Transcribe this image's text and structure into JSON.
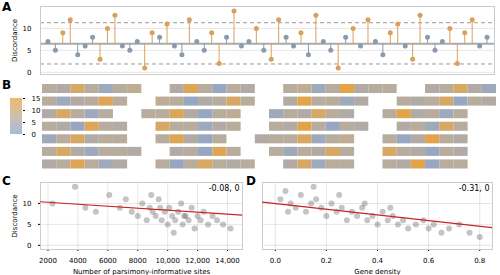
{
  "chart_data": [
    {
      "type": "lollipop",
      "panel": "A",
      "y_label": "Discordance",
      "x": [
        1,
        2,
        3,
        4,
        5,
        6,
        7,
        8,
        9,
        10,
        11,
        12,
        13,
        14,
        15,
        16,
        17,
        18,
        19,
        20,
        21,
        22,
        23,
        24,
        25,
        26,
        27,
        28,
        29,
        30,
        31,
        32,
        33,
        34,
        35,
        36,
        37,
        38,
        39,
        40,
        41,
        42,
        43,
        44,
        45,
        46,
        47,
        48,
        49,
        50,
        51,
        52,
        53,
        54,
        55,
        56,
        57,
        58,
        59,
        60
      ],
      "values": [
        7,
        5,
        9,
        12,
        4,
        6,
        8,
        3,
        10,
        13,
        6,
        5,
        7,
        1,
        9,
        8,
        11,
        6,
        4,
        12,
        7,
        5,
        9,
        2,
        8,
        14,
        6,
        7,
        10,
        5,
        3,
        12,
        8,
        6,
        9,
        4,
        13,
        7,
        5,
        1,
        8,
        10,
        6,
        12,
        7,
        4,
        9,
        11,
        6,
        3,
        13,
        8,
        5,
        7,
        10,
        2,
        9,
        12,
        6,
        8
      ],
      "colors": [
        "#8c9bab",
        "#8c9bab",
        "#d9a05b",
        "#d9a05b",
        "#8c9bab",
        "#8c9bab",
        "#8c9bab",
        "#d9a05b",
        "#d9a05b",
        "#d9a05b",
        "#8c9bab",
        "#8c9bab",
        "#8c9bab",
        "#d9a05b",
        "#d9a05b",
        "#8c9bab",
        "#d9a05b",
        "#8c9bab",
        "#8c9bab",
        "#d9a05b",
        "#8c9bab",
        "#8c9bab",
        "#d9a05b",
        "#d9a05b",
        "#8c9bab",
        "#d9a05b",
        "#8c9bab",
        "#8c9bab",
        "#d9a05b",
        "#8c9bab",
        "#d9a05b",
        "#d9a05b",
        "#8c9bab",
        "#8c9bab",
        "#d9a05b",
        "#8c9bab",
        "#d9a05b",
        "#8c9bab",
        "#8c9bab",
        "#d9a05b",
        "#8c9bab",
        "#d9a05b",
        "#8c9bab",
        "#d9a05b",
        "#8c9bab",
        "#8c9bab",
        "#d9a05b",
        "#d9a05b",
        "#8c9bab",
        "#d9a05b",
        "#d9a05b",
        "#8c9bab",
        "#8c9bab",
        "#8c9bab",
        "#d9a05b",
        "#d9a05b",
        "#d9a05b",
        "#d9a05b",
        "#8c9bab",
        "#8c9bab"
      ],
      "baseline": 6.5,
      "reference_lines": [
        1.9,
        11.3
      ],
      "xlim": [
        0,
        61
      ],
      "ylim": [
        -0.5,
        15
      ],
      "yticks": [
        0,
        5,
        10
      ],
      "grid": true,
      "tick_labels": "y"
    },
    {
      "type": "heatmap",
      "panel": "B",
      "rows": [
        [
          [
            7,
            6,
            12,
            7,
            3,
            7,
            8
          ],
          [
            6,
            13,
            7,
            2,
            7,
            6
          ],
          [
            7,
            8,
            3,
            7,
            14,
            6,
            7,
            7
          ],
          [
            6,
            7,
            12,
            6,
            3
          ]
        ],
        [
          [
            7,
            3,
            6,
            7,
            13,
            7
          ],
          [
            8,
            7,
            2,
            6,
            7,
            12,
            7
          ],
          [
            6,
            14,
            7,
            7,
            3,
            6
          ],
          [
            7,
            6,
            7,
            12,
            2,
            7,
            6
          ]
        ],
        [
          [
            6,
            12,
            7,
            3,
            7
          ],
          [
            7,
            7,
            13,
            6,
            2,
            7,
            8
          ],
          [
            3,
            7,
            6,
            12,
            7,
            6
          ],
          [
            7,
            14,
            6,
            7,
            3,
            7
          ]
        ],
        [
          [
            7,
            6,
            2,
            13,
            7,
            6
          ],
          [
            12,
            7,
            7,
            3,
            6,
            7
          ],
          [
            7,
            6,
            14,
            7,
            2,
            7,
            6
          ],
          [
            6,
            7,
            3,
            12,
            7
          ]
        ],
        [
          [
            3,
            7,
            12,
            6,
            7,
            7
          ],
          [
            7,
            13,
            6,
            2,
            7
          ],
          [
            6,
            7,
            7,
            12,
            3,
            7,
            8
          ],
          [
            7,
            2,
            6,
            14,
            7,
            6
          ]
        ],
        [
          [
            7,
            12,
            6,
            3,
            7,
            7,
            6
          ],
          [
            6,
            7,
            2,
            13,
            7
          ],
          [
            7,
            3,
            7,
            6,
            12,
            7
          ],
          [
            12,
            7,
            6,
            2,
            7,
            6
          ]
        ],
        [
          [
            6,
            7,
            13,
            7,
            3,
            6
          ],
          [
            7,
            2,
            7,
            12,
            7,
            6,
            7
          ],
          [
            6,
            12,
            3,
            7,
            7
          ],
          [
            7,
            6,
            14,
            2,
            7,
            7
          ]
        ]
      ],
      "colors": [
        "#8aa4cc",
        "#bcb0a2",
        "#e9a23b"
      ],
      "color_lim": [
        0,
        15
      ],
      "color_ticks": [
        0,
        5,
        10,
        15
      ],
      "tick_labels": false
    },
    {
      "type": "scatter",
      "panel": "C",
      "x_label": "Number of parsimony-informative sites",
      "y_label": "Discordance",
      "x": [
        2300,
        3800,
        4500,
        5200,
        6100,
        6800,
        7200,
        7600,
        8000,
        8300,
        8600,
        8800,
        9000,
        9200,
        9400,
        9600,
        9800,
        10000,
        10100,
        10300,
        10500,
        10700,
        10900,
        11000,
        11200,
        11400,
        11600,
        11800,
        12000,
        12200,
        12400,
        12700,
        13000,
        13300,
        13700,
        14200,
        9500,
        10400,
        11100,
        8900
      ],
      "values": [
        10,
        14,
        9,
        8,
        12,
        9,
        11,
        8,
        7,
        10,
        6,
        9,
        8,
        7,
        11,
        6,
        8,
        5,
        9,
        7,
        6,
        8,
        10,
        5,
        7,
        6,
        9,
        4,
        7,
        6,
        8,
        5,
        7,
        6,
        5,
        4,
        9,
        3,
        7,
        12
      ],
      "trend": {
        "x": [
          1500,
          15000
        ],
        "y": [
          10.4,
          7.2
        ],
        "color": "#cc2222"
      },
      "annotation": "-0.08, 0",
      "xlim": [
        1500,
        15000
      ],
      "ylim": [
        -1,
        15
      ],
      "xticks": [
        2000,
        4000,
        6000,
        8000,
        {
          "value": 10000,
          "label": "10,000"
        },
        {
          "value": 12000,
          "label": "12,000"
        },
        {
          "value": 14000,
          "label": "14,000"
        }
      ],
      "yticks": [
        0,
        5,
        10
      ],
      "grid": true,
      "color": "#555555"
    },
    {
      "type": "scatter",
      "panel": "D",
      "x_label": "Gene density",
      "x": [
        0.02,
        0.04,
        0.06,
        0.08,
        0.1,
        0.12,
        0.14,
        0.16,
        0.18,
        0.2,
        0.22,
        0.24,
        0.26,
        0.28,
        0.3,
        0.32,
        0.34,
        0.36,
        0.38,
        0.4,
        0.42,
        0.44,
        0.46,
        0.48,
        0.5,
        0.52,
        0.55,
        0.58,
        0.6,
        0.62,
        0.65,
        0.68,
        0.72,
        0.76,
        0.8,
        0.15,
        0.25,
        0.35,
        0.45,
        0.05
      ],
      "values": [
        11,
        13,
        10,
        9,
        12,
        8,
        10,
        11,
        9,
        7,
        10,
        8,
        9,
        6,
        8,
        7,
        9,
        6,
        7,
        5,
        8,
        6,
        7,
        5,
        6,
        4,
        5,
        6,
        4,
        5,
        3,
        4,
        5,
        3,
        2,
        14,
        12,
        10,
        9,
        8
      ],
      "trend": {
        "x": [
          -0.05,
          0.85
        ],
        "y": [
          10.3,
          4.2
        ],
        "color": "#cc2222"
      },
      "annotation": "-0.31, 0",
      "xlim": [
        -0.05,
        0.85
      ],
      "ylim": [
        -1,
        15
      ],
      "xticks": [
        {
          "value": 0,
          "label": "0.0"
        },
        0.2,
        0.4,
        0.6,
        0.8
      ],
      "yticks": [
        0,
        5,
        10
      ],
      "grid": true,
      "tick_labels": "x",
      "color": "#555555"
    }
  ]
}
